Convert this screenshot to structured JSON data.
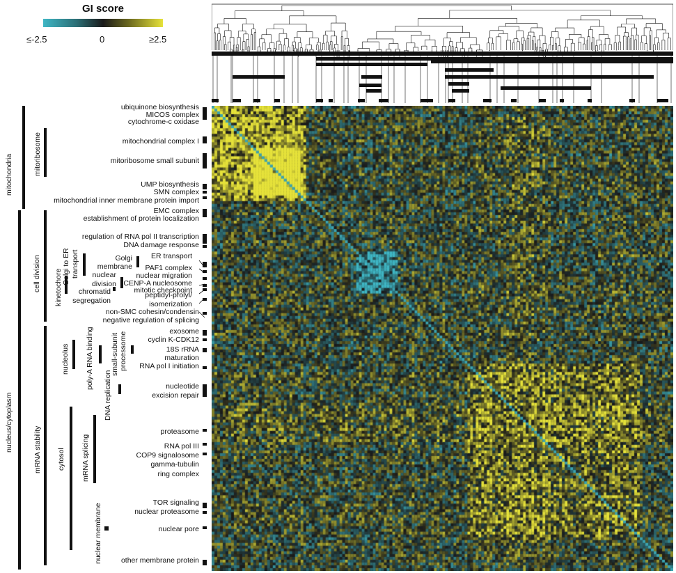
{
  "chart_data": {
    "type": "heatmap",
    "title": "GI score",
    "colorbar": {
      "ticks": [
        "≤-2.5",
        "0",
        "≥2.5"
      ],
      "range": [
        -2.5,
        2.5
      ],
      "colors": {
        "low": "#3fb6c4",
        "mid": "#1a1a1a",
        "high": "#e6e23a"
      }
    },
    "row_clusters": [
      "ubiquinone biosynthesis",
      "MICOS complex",
      "cytochrome-c oxidase",
      "mitochondrial complex I",
      "mitoribosome small subunit",
      "UMP biosynthesis",
      "SMN complex",
      "mitochondrial inner membrane protein import",
      "EMC complex",
      "establishment of protein localization",
      "regulation of RNA pol II transcription",
      "DNA damage response",
      "ER transport",
      "PAF1 complex",
      "nuclear migration",
      "CENP-A nucleosome",
      "mitotic checkpoint",
      "peptidyl-prolyl/",
      "isomerization",
      "non-SMC cohesin/condensin",
      "negative regulation of splicing",
      "exosome",
      "cyclin K-CDK12",
      "18S rRNA",
      "maturation",
      "RNA pol I initiation",
      "nucleotide",
      "excision repair",
      "proteasome",
      "RNA pol III",
      "COP9 signalosome",
      "gamma-tubulin",
      "ring complex",
      "TOR signaling",
      "nuclear proteasome",
      "nuclear pore",
      "other membrane protein"
    ],
    "inner_labels": [
      "Golgi",
      "membrane",
      "nuclear",
      "division",
      "chromatid",
      "segregation"
    ],
    "vertical_labels": [
      "mitochondria",
      "mitoribosome",
      "nucleus/cytoplasm",
      "cell division",
      "kinetochore",
      "Golgi to ER",
      "transport",
      "mRNA stability",
      "nucleolus",
      "poly-A RNA binding",
      "small-subunit",
      "processome",
      "DNA replication",
      "cytosol",
      "mRNA splicing",
      "nuclear membrane"
    ],
    "blocks": [
      {
        "name": "mitochondrial complex I / mitoribosome",
        "start": 0.0,
        "end": 0.2,
        "value": 1.8
      },
      {
        "name": "mitoribosome small subunit",
        "start": 0.09,
        "end": 0.19,
        "value": 2.5
      },
      {
        "name": "ER transport / PAF1 complex",
        "start": 0.31,
        "end": 0.4,
        "value": -2.0
      },
      {
        "name": "proteasome",
        "start": 0.55,
        "end": 0.93,
        "value": 0.9
      }
    ]
  }
}
